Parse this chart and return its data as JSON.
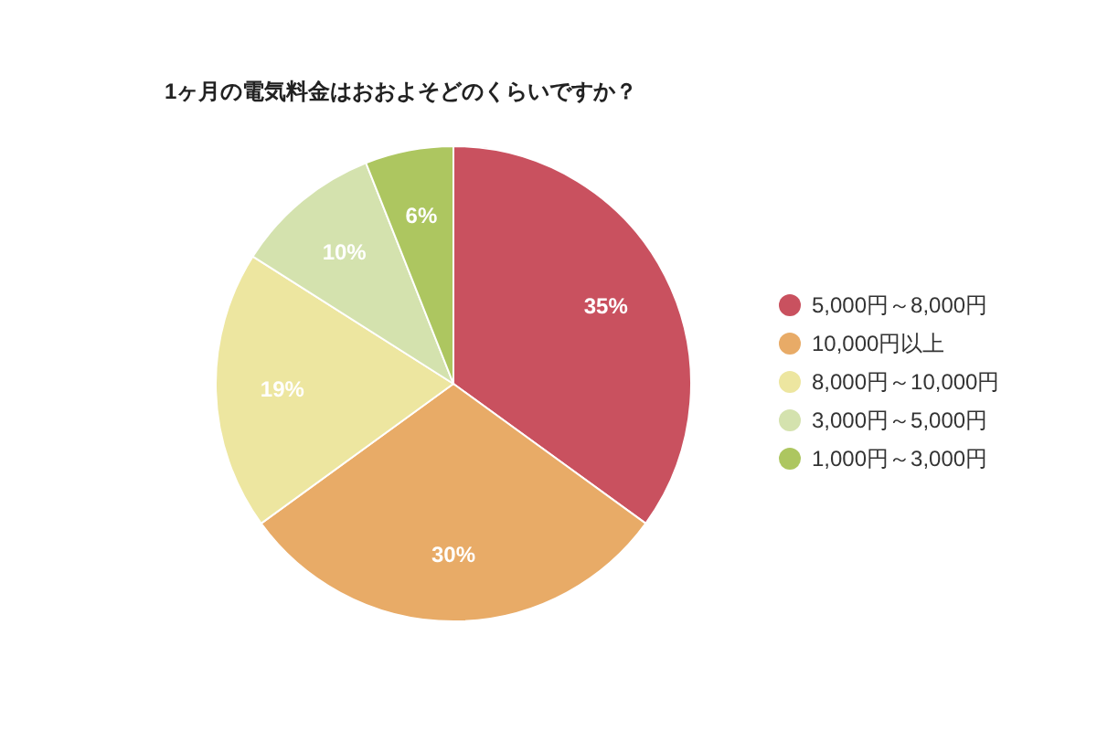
{
  "chart_data": {
    "type": "pie",
    "title": "1ヶ月の電気料金はおおよそどのくらいですか？",
    "categories": [
      "5,000円～8,000円",
      "10,000円以上",
      "8,000円～10,000円",
      "3,000円～5,000円",
      "1,000円～3,000円"
    ],
    "values": [
      35,
      30,
      19,
      10,
      6
    ],
    "value_labels": [
      "35%",
      "30%",
      "19%",
      "10%",
      "6%"
    ],
    "colors": [
      "#c9515f",
      "#e8ab67",
      "#ede6a0",
      "#d4e2ae",
      "#adc660"
    ],
    "legend": "right"
  }
}
